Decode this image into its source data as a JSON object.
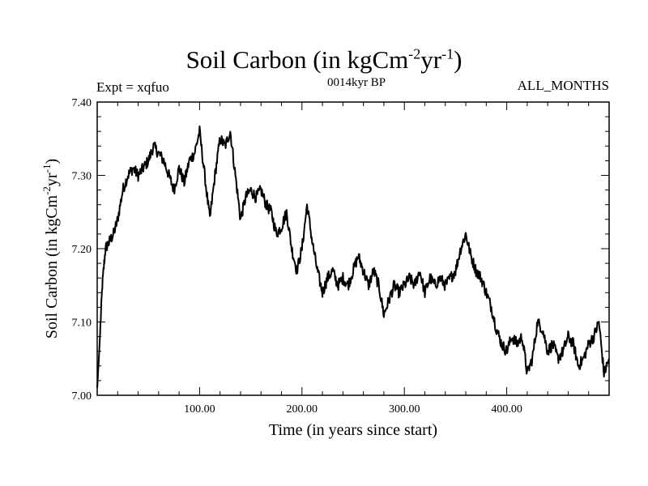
{
  "header": {
    "title_main": "Soil Carbon (in kgCm",
    "title_exp1": "-2",
    "title_mid": "yr",
    "title_exp2": "-1",
    "title_end": ")",
    "subtitle": "0014kyr BP",
    "experiment": "Expt = xqfuo",
    "months": "ALL_MONTHS"
  },
  "chart_data": {
    "type": "line",
    "title": "Soil Carbon (in kgCm-2yr-1)",
    "xlabel": "Time (in years since start)",
    "ylabel": "Soil Carbon (in kgCm-2yr-1)",
    "ylabel_parts": {
      "main": "Soil Carbon (in kgCm",
      "exp1": "-2",
      "mid": "yr",
      "exp2": "-1",
      "end": ")"
    },
    "xlim": [
      0,
      500
    ],
    "ylim": [
      7.0,
      7.4
    ],
    "xticks": [
      100,
      200,
      300,
      400
    ],
    "xtick_labels": [
      "100.00",
      "200.00",
      "300.00",
      "400.00"
    ],
    "yticks": [
      7.0,
      7.1,
      7.2,
      7.3,
      7.4
    ],
    "ytick_labels": [
      "7.00",
      "7.10",
      "7.20",
      "7.30",
      "7.40"
    ],
    "series": [
      {
        "name": "Soil Carbon",
        "x": [
          0,
          2,
          5,
          8,
          12,
          16,
          20,
          25,
          30,
          35,
          40,
          45,
          50,
          55,
          60,
          65,
          70,
          75,
          80,
          85,
          90,
          95,
          100,
          105,
          110,
          115,
          120,
          125,
          130,
          135,
          140,
          145,
          150,
          155,
          160,
          165,
          170,
          175,
          180,
          185,
          190,
          195,
          200,
          205,
          210,
          215,
          220,
          225,
          230,
          235,
          240,
          245,
          250,
          255,
          260,
          265,
          270,
          275,
          280,
          285,
          290,
          295,
          300,
          305,
          310,
          315,
          320,
          325,
          330,
          335,
          340,
          345,
          350,
          355,
          360,
          365,
          370,
          375,
          380,
          385,
          390,
          395,
          400,
          405,
          410,
          415,
          420,
          425,
          430,
          435,
          440,
          445,
          450,
          455,
          460,
          465,
          470,
          475,
          480,
          485,
          490,
          495,
          500
        ],
        "y": [
          7.01,
          7.06,
          7.15,
          7.2,
          7.21,
          7.22,
          7.24,
          7.28,
          7.3,
          7.31,
          7.3,
          7.31,
          7.32,
          7.34,
          7.33,
          7.32,
          7.3,
          7.28,
          7.31,
          7.29,
          7.32,
          7.33,
          7.36,
          7.3,
          7.24,
          7.3,
          7.35,
          7.34,
          7.36,
          7.3,
          7.24,
          7.27,
          7.28,
          7.27,
          7.28,
          7.26,
          7.25,
          7.22,
          7.23,
          7.25,
          7.2,
          7.17,
          7.2,
          7.26,
          7.21,
          7.17,
          7.14,
          7.16,
          7.17,
          7.15,
          7.16,
          7.15,
          7.17,
          7.19,
          7.17,
          7.15,
          7.17,
          7.15,
          7.11,
          7.13,
          7.15,
          7.14,
          7.15,
          7.16,
          7.15,
          7.17,
          7.14,
          7.16,
          7.15,
          7.16,
          7.15,
          7.16,
          7.17,
          7.2,
          7.22,
          7.19,
          7.17,
          7.16,
          7.14,
          7.12,
          7.09,
          7.07,
          7.06,
          7.08,
          7.07,
          7.08,
          7.03,
          7.05,
          7.1,
          7.09,
          7.06,
          7.07,
          7.05,
          7.06,
          7.08,
          7.07,
          7.04,
          7.05,
          7.07,
          7.08,
          7.1,
          7.03,
          7.05
        ]
      }
    ]
  }
}
